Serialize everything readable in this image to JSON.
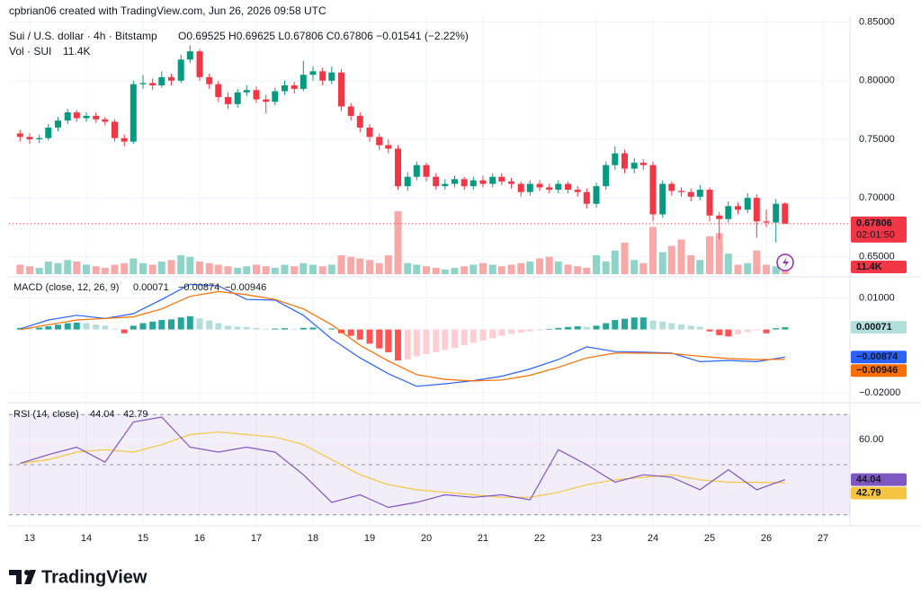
{
  "header": {
    "credit": "cpbrian06 created with TradingView.com, Jun 26, 2026 09:58 UTC"
  },
  "footer": {
    "brand": "TradingView"
  },
  "chart_data": [
    {
      "type": "candlestick",
      "title": "Sui / U.S. dollar · 4h · Bitstamp",
      "subtitle": "O0.69525 H0.69625 L0.67806 C0.67806 −0.01541 (−2.22%)",
      "up_color": "#089981",
      "down_color": "#f23645",
      "xlim": [
        12.635,
        27.476
      ],
      "xticks": [
        13,
        14,
        15,
        16,
        17,
        18,
        19,
        20,
        21,
        22,
        23,
        24,
        25,
        26,
        27
      ],
      "ylim": [
        0.635,
        0.855
      ],
      "yticks": [
        {
          "value": 0.65,
          "label": "0.65000"
        },
        {
          "value": 0.7,
          "label": "0.70000"
        },
        {
          "value": 0.75,
          "label": "0.75000"
        },
        {
          "value": 0.8,
          "label": "0.80000"
        },
        {
          "value": 0.85,
          "label": "0.85000"
        }
      ],
      "last_price_label": "0.67806",
      "countdown": "02:01:50",
      "x": [
        12.83,
        13,
        13.17,
        13.33,
        13.5,
        13.67,
        13.83,
        14,
        14.17,
        14.33,
        14.5,
        14.67,
        14.83,
        15,
        15.17,
        15.33,
        15.5,
        15.67,
        15.83,
        16,
        16.17,
        16.33,
        16.5,
        16.67,
        16.83,
        17,
        17.17,
        17.33,
        17.5,
        17.67,
        17.83,
        18,
        18.17,
        18.33,
        18.5,
        18.67,
        18.83,
        19,
        19.17,
        19.33,
        19.5,
        19.67,
        19.83,
        20,
        20.17,
        20.33,
        20.5,
        20.67,
        20.83,
        21,
        21.17,
        21.33,
        21.5,
        21.67,
        21.83,
        22,
        22.17,
        22.33,
        22.5,
        22.67,
        22.83,
        23,
        23.17,
        23.33,
        23.5,
        23.67,
        23.83,
        24,
        24.17,
        24.33,
        24.5,
        24.67,
        24.83,
        25,
        25.17,
        25.33,
        25.5,
        25.67,
        25.83,
        26,
        26.17,
        26.33
      ],
      "open": [
        0.755,
        0.752,
        0.75,
        0.751,
        0.76,
        0.766,
        0.773,
        0.768,
        0.77,
        0.767,
        0.765,
        0.751,
        0.748,
        0.797,
        0.798,
        0.796,
        0.803,
        0.8,
        0.818,
        0.825,
        0.803,
        0.797,
        0.786,
        0.78,
        0.79,
        0.792,
        0.784,
        0.782,
        0.791,
        0.796,
        0.793,
        0.805,
        0.808,
        0.8,
        0.807,
        0.778,
        0.77,
        0.76,
        0.752,
        0.745,
        0.742,
        0.71,
        0.718,
        0.728,
        0.718,
        0.71,
        0.712,
        0.716,
        0.71,
        0.715,
        0.712,
        0.718,
        0.714,
        0.712,
        0.705,
        0.712,
        0.709,
        0.707,
        0.712,
        0.707,
        0.705,
        0.695,
        0.71,
        0.728,
        0.738,
        0.725,
        0.73,
        0.728,
        0.686,
        0.712,
        0.706,
        0.705,
        0.701,
        0.707,
        0.685,
        0.682,
        0.693,
        0.69,
        0.7,
        0.68,
        0.679,
        0.69525
      ],
      "high": [
        0.758,
        0.755,
        0.754,
        0.763,
        0.769,
        0.776,
        0.775,
        0.773,
        0.773,
        0.769,
        0.767,
        0.754,
        0.8,
        0.805,
        0.802,
        0.808,
        0.806,
        0.822,
        0.83,
        0.827,
        0.806,
        0.8,
        0.79,
        0.793,
        0.796,
        0.795,
        0.788,
        0.794,
        0.8,
        0.799,
        0.817,
        0.812,
        0.811,
        0.812,
        0.81,
        0.781,
        0.773,
        0.763,
        0.755,
        0.75,
        0.745,
        0.722,
        0.731,
        0.73,
        0.721,
        0.716,
        0.719,
        0.718,
        0.718,
        0.719,
        0.721,
        0.721,
        0.717,
        0.714,
        0.715,
        0.715,
        0.712,
        0.715,
        0.714,
        0.71,
        0.708,
        0.713,
        0.731,
        0.744,
        0.741,
        0.734,
        0.733,
        0.731,
        0.715,
        0.714,
        0.709,
        0.708,
        0.711,
        0.709,
        0.688,
        0.697,
        0.696,
        0.704,
        0.703,
        0.69,
        0.699,
        0.69625
      ],
      "low": [
        0.748,
        0.746,
        0.747,
        0.749,
        0.757,
        0.763,
        0.765,
        0.765,
        0.764,
        0.762,
        0.748,
        0.744,
        0.746,
        0.793,
        0.792,
        0.794,
        0.796,
        0.798,
        0.815,
        0.8,
        0.793,
        0.782,
        0.776,
        0.777,
        0.787,
        0.781,
        0.772,
        0.779,
        0.788,
        0.789,
        0.791,
        0.8,
        0.796,
        0.797,
        0.774,
        0.766,
        0.756,
        0.748,
        0.741,
        0.738,
        0.707,
        0.706,
        0.715,
        0.714,
        0.707,
        0.707,
        0.709,
        0.707,
        0.707,
        0.709,
        0.709,
        0.711,
        0.708,
        0.701,
        0.702,
        0.706,
        0.704,
        0.704,
        0.704,
        0.701,
        0.691,
        0.692,
        0.707,
        0.724,
        0.721,
        0.721,
        0.724,
        0.68,
        0.683,
        0.702,
        0.701,
        0.697,
        0.698,
        0.68,
        0.665,
        0.679,
        0.686,
        0.687,
        0.666,
        0.675,
        0.662,
        0.67806
      ],
      "close": [
        0.752,
        0.75,
        0.751,
        0.76,
        0.766,
        0.773,
        0.768,
        0.77,
        0.767,
        0.765,
        0.751,
        0.748,
        0.797,
        0.798,
        0.796,
        0.803,
        0.8,
        0.818,
        0.825,
        0.803,
        0.797,
        0.786,
        0.78,
        0.79,
        0.792,
        0.784,
        0.782,
        0.791,
        0.796,
        0.793,
        0.805,
        0.808,
        0.8,
        0.807,
        0.778,
        0.77,
        0.76,
        0.752,
        0.745,
        0.742,
        0.71,
        0.718,
        0.728,
        0.718,
        0.71,
        0.712,
        0.716,
        0.71,
        0.715,
        0.712,
        0.718,
        0.714,
        0.712,
        0.705,
        0.712,
        0.709,
        0.707,
        0.712,
        0.707,
        0.705,
        0.695,
        0.71,
        0.728,
        0.738,
        0.725,
        0.73,
        0.728,
        0.686,
        0.712,
        0.706,
        0.705,
        0.701,
        0.707,
        0.685,
        0.682,
        0.693,
        0.69,
        0.7,
        0.68,
        0.679,
        0.695,
        0.67806
      ],
      "volume": {
        "name": "Vol · SUI",
        "value_label": "11.4K",
        "ylim": [
          0,
          820000
        ],
        "up_color": "#8fd3c9",
        "down_color": "#f7a9a7",
        "values": [
          30000,
          25000,
          20000,
          40000,
          35000,
          45000,
          40000,
          30000,
          25000,
          20000,
          30000,
          35000,
          50000,
          35000,
          30000,
          40000,
          45000,
          60000,
          55000,
          40000,
          35000,
          30000,
          25000,
          20000,
          25000,
          30000,
          25000,
          20000,
          30000,
          25000,
          35000,
          30000,
          25000,
          30000,
          60000,
          55000,
          50000,
          45000,
          35000,
          60000,
          200000,
          35000,
          30000,
          25000,
          20000,
          15000,
          20000,
          25000,
          30000,
          35000,
          30000,
          25000,
          30000,
          35000,
          40000,
          50000,
          55000,
          40000,
          30000,
          25000,
          20000,
          60000,
          40000,
          75000,
          100000,
          45000,
          35000,
          150000,
          70000,
          90000,
          110000,
          60000,
          45000,
          120000,
          130000,
          65000,
          30000,
          35000,
          75000,
          30000,
          25000,
          11400
        ]
      }
    },
    {
      "type": "macd",
      "title": "MACD (close, 12, 26, 9)",
      "ylim": [
        -0.0226,
        0.0161
      ],
      "yticks": [
        {
          "value": 0.01,
          "label": "0.01000"
        },
        {
          "value": -0.02,
          "label": "−0.02000"
        }
      ],
      "histogram": {
        "colors": [
          "#26a69a",
          "#b2dfdb",
          "#ffcdd2",
          "#ff5252"
        ],
        "last_value_label": "0.00071",
        "values": [
          0.0005,
          0.0004,
          0.0006,
          0.001,
          0.0015,
          0.002,
          0.0022,
          0.002,
          0.0016,
          0.0012,
          0.0002,
          -0.0012,
          0.0012,
          0.002,
          0.0025,
          0.003,
          0.0032,
          0.0038,
          0.0042,
          0.0035,
          0.0028,
          0.002,
          0.0012,
          0.0009,
          0.0008,
          0.0005,
          0.0002,
          0.0003,
          0.0004,
          0.0002,
          0.0005,
          0.0006,
          0.0002,
          0.0003,
          -0.0012,
          -0.002,
          -0.0032,
          -0.0045,
          -0.006,
          -0.0072,
          -0.0098,
          -0.0095,
          -0.0085,
          -0.0078,
          -0.0072,
          -0.0065,
          -0.0058,
          -0.005,
          -0.0042,
          -0.0035,
          -0.0028,
          -0.002,
          -0.0014,
          -0.001,
          -0.0006,
          -0.0003,
          0.0002,
          0.0005,
          0.0008,
          0.001,
          0.0008,
          0.0012,
          0.002,
          0.003,
          0.0034,
          0.0038,
          0.0038,
          0.0028,
          0.0025,
          0.002,
          0.0016,
          0.0012,
          0.0009,
          -0.0006,
          -0.0018,
          -0.0022,
          -0.0015,
          -0.0008,
          -0.0003,
          -0.0012,
          0.0004,
          0.00071
        ]
      },
      "x": [
        12.83,
        13.33,
        13.83,
        14.33,
        14.83,
        15.33,
        15.83,
        16.33,
        16.83,
        17.33,
        17.83,
        18.33,
        18.83,
        19.33,
        19.83,
        20.33,
        20.83,
        21.33,
        21.83,
        22.33,
        22.83,
        23.33,
        23.83,
        24.33,
        24.83,
        25.33,
        25.83,
        26.33
      ],
      "series": [
        {
          "color": "#2962ff",
          "last_value_label": "−0.00874",
          "values": [
            0.0002,
            0.003,
            0.0045,
            0.0035,
            0.005,
            0.0095,
            0.0143,
            0.0138,
            0.0095,
            0.0093,
            0.0045,
            -0.003,
            -0.009,
            -0.014,
            -0.018,
            -0.0172,
            -0.0162,
            -0.0148,
            -0.0125,
            -0.0095,
            -0.0055,
            -0.007,
            -0.0072,
            -0.0075,
            -0.0102,
            -0.0098,
            -0.0102,
            -0.00874
          ]
        },
        {
          "color": "#ff6d00",
          "last_value_label": "−0.00946",
          "values": [
            0.0,
            0.0015,
            0.003,
            0.0035,
            0.004,
            0.0065,
            0.0105,
            0.012,
            0.011,
            0.0095,
            0.0065,
            0.0015,
            -0.005,
            -0.01,
            -0.0143,
            -0.0158,
            -0.0163,
            -0.016,
            -0.0145,
            -0.012,
            -0.009,
            -0.0075,
            -0.0075,
            -0.0076,
            -0.0085,
            -0.0092,
            -0.0095,
            -0.00946
          ]
        }
      ]
    },
    {
      "type": "rsi",
      "title": "RSI (14, close)",
      "ylim": [
        26,
        74
      ],
      "yticks": [
        {
          "value": 60,
          "label": "60.00"
        }
      ],
      "levels": [
        30,
        50,
        70
      ],
      "x": [
        12.83,
        13.33,
        13.83,
        14.33,
        14.83,
        15.33,
        15.83,
        16.33,
        16.83,
        17.33,
        17.83,
        18.33,
        18.83,
        19.33,
        19.83,
        20.33,
        20.83,
        21.33,
        21.83,
        22.33,
        22.83,
        23.33,
        23.83,
        24.33,
        24.83,
        25.33,
        25.83,
        26.33
      ],
      "series": [
        {
          "color": "#7e57c2",
          "last_value_label": "44.04",
          "values": [
            50.5,
            54,
            57,
            51,
            67,
            69,
            57,
            55,
            57,
            55,
            46,
            35,
            38,
            33,
            35,
            38,
            37,
            38,
            36,
            56,
            50,
            43,
            46,
            45,
            40,
            48,
            40,
            44.04
          ]
        },
        {
          "color": "#f5c542",
          "last_value_label": "42.79",
          "values": [
            50.5,
            52,
            55,
            56,
            55,
            58,
            62,
            63,
            62,
            61,
            58,
            52,
            46,
            42,
            40,
            39,
            38,
            37,
            37,
            39,
            42,
            44,
            45,
            46,
            44,
            43,
            43,
            42.79
          ]
        }
      ]
    }
  ]
}
